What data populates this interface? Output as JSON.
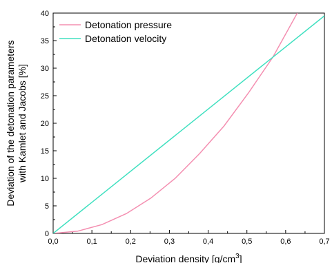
{
  "chart_data": {
    "type": "line",
    "xlabel": "Deviation density [g/cm",
    "xlabel_sup": "3",
    "xlabel_end": "]",
    "ylabel_line1": "Deviation of the detonation parameters",
    "ylabel_line2": "with Kamlet and Jacobs [%]",
    "xlim": [
      0.0,
      0.7
    ],
    "ylim": [
      0,
      40
    ],
    "x_ticks": [
      0.0,
      0.1,
      0.2,
      0.3,
      0.4,
      0.5,
      0.6,
      0.7
    ],
    "x_tick_labels": [
      "0,0",
      "0,1",
      "0,2",
      "0,3",
      "0,4",
      "0,5",
      "0,6",
      "0,7"
    ],
    "y_ticks": [
      0,
      5,
      10,
      15,
      20,
      25,
      30,
      35,
      40
    ],
    "y_tick_labels": [
      "0",
      "5",
      "10",
      "15",
      "20",
      "25",
      "30",
      "35",
      "40"
    ],
    "grid": false,
    "legend_position": "top-left",
    "series": [
      {
        "name": "Detonation pressure",
        "color": "#f48fb1",
        "x": [
          0.0,
          0.063,
          0.126,
          0.189,
          0.252,
          0.315,
          0.378,
          0.441,
          0.504,
          0.567,
          0.63
        ],
        "y": [
          0.0,
          0.4,
          1.6,
          3.6,
          6.4,
          10.0,
          14.5,
          19.5,
          25.5,
          32.0,
          40.0
        ]
      },
      {
        "name": "Detonation velocity",
        "color": "#40e0c0",
        "x": [
          0.0,
          0.7
        ],
        "y": [
          0.0,
          39.5
        ]
      }
    ]
  }
}
